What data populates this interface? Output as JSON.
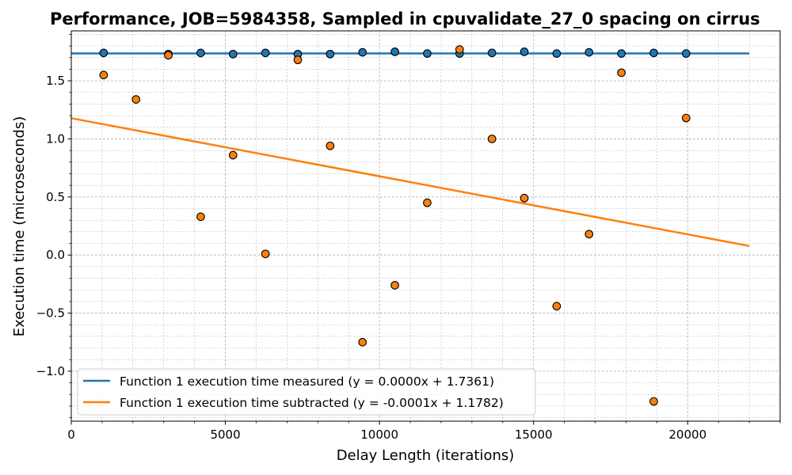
{
  "chart_data": {
    "type": "scatter",
    "title": "Performance, JOB=5984358, Sampled in cpuvalidate_27_0 spacing on cirrus",
    "xlabel": "Delay Length (iterations)",
    "ylabel": "Execution time (microseconds)",
    "xlim": [
      0,
      23000
    ],
    "ylim": [
      -1.43,
      1.93
    ],
    "xticks": [
      0,
      5000,
      10000,
      15000,
      20000
    ],
    "xtick_labels": [
      "0",
      "5000",
      "10000",
      "15000",
      "20000"
    ],
    "yticks": [
      -1.0,
      -0.5,
      0.0,
      0.5,
      1.0,
      1.5
    ],
    "ytick_labels": [
      "−1.0",
      "−0.5",
      "0.0",
      "0.5",
      "1.0",
      "1.5"
    ],
    "grid": true,
    "legend_position": "lower-left",
    "series": [
      {
        "name": "Function 1 execution time measured (y = 0.0000x + 1.7361)",
        "color": "#1f77b4",
        "fit": {
          "slope": 0.0,
          "intercept": 1.7361,
          "x_range": [
            0,
            22000
          ]
        },
        "points": [
          [
            1050,
            1.74
          ],
          [
            3150,
            1.73
          ],
          [
            4200,
            1.74
          ],
          [
            5250,
            1.73
          ],
          [
            6300,
            1.74
          ],
          [
            7350,
            1.73
          ],
          [
            8400,
            1.73
          ],
          [
            9450,
            1.745
          ],
          [
            10500,
            1.75
          ],
          [
            11550,
            1.735
          ],
          [
            12600,
            1.735
          ],
          [
            13650,
            1.74
          ],
          [
            14700,
            1.75
          ],
          [
            15750,
            1.735
          ],
          [
            16800,
            1.745
          ],
          [
            17850,
            1.735
          ],
          [
            18900,
            1.74
          ],
          [
            19950,
            1.735
          ]
        ]
      },
      {
        "name": "Function 1 execution time subtracted (y = -0.0001x + 1.1782)",
        "color": "#ff7f0e",
        "fit": {
          "slope": -5e-05,
          "intercept": 1.1782,
          "x_range": [
            0,
            22000
          ]
        },
        "points": [
          [
            1050,
            1.55
          ],
          [
            2100,
            1.34
          ],
          [
            3150,
            1.72
          ],
          [
            4200,
            0.33
          ],
          [
            5250,
            0.86
          ],
          [
            6300,
            0.01
          ],
          [
            7350,
            1.68
          ],
          [
            8400,
            0.94
          ],
          [
            9450,
            -0.75
          ],
          [
            10500,
            -0.26
          ],
          [
            11550,
            0.45
          ],
          [
            12600,
            1.77
          ],
          [
            13650,
            1.0
          ],
          [
            14700,
            0.49
          ],
          [
            15750,
            -0.44
          ],
          [
            16800,
            0.18
          ],
          [
            17850,
            1.57
          ],
          [
            18900,
            -1.26
          ],
          [
            19950,
            1.18
          ]
        ]
      }
    ]
  }
}
